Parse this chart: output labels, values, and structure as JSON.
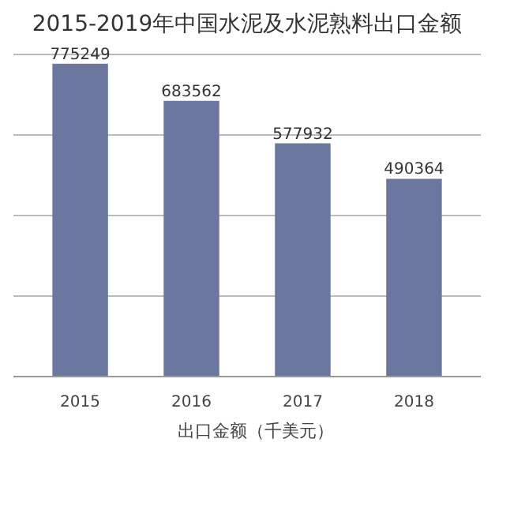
{
  "chart_data": {
    "type": "bar",
    "title": "2015-2019年中国水泥及水泥熟料出口金额",
    "categories": [
      "2015",
      "2016",
      "2017",
      "2018"
    ],
    "series": [
      {
        "name": "出口金额（千美元）",
        "color": "#6c77a0",
        "values": [
          775249,
          683562,
          577932,
          490364
        ]
      }
    ],
    "tick_labels": "x",
    "grid": "y",
    "legend": "bottom",
    "data_labels": true
  }
}
